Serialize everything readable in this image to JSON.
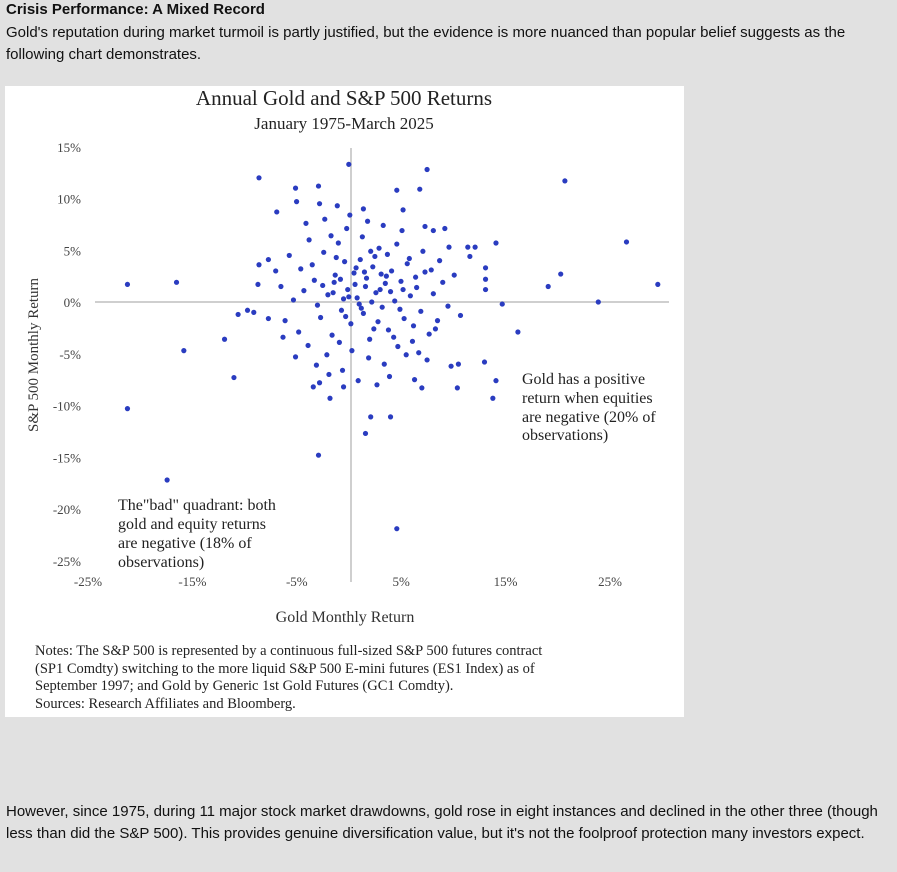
{
  "article": {
    "heading": "Crisis Performance: A Mixed Record",
    "intro": "Gold's reputation during market turmoil is partly justified, but the evidence is more nuanced than popular belief suggests as the following chart demonstrates.",
    "outro": "However, since 1975, during 11 major stock market drawdowns, gold rose in eight instances and declined in the other three (though less than did the S&P 500). This provides genuine diversification value, but it's not the foolproof protection many investors expect."
  },
  "chart_data": {
    "type": "scatter",
    "title": "Annual Gold and S&P 500 Returns",
    "subtitle": "January 1975-March 2025",
    "xlabel": "Gold Monthly Return",
    "ylabel": "S&P 500 Monthly Return",
    "xlim": [
      -25,
      30
    ],
    "ylim": [
      -25,
      15
    ],
    "x_ticks": [
      "-25%",
      "-15%",
      "-5%",
      "5%",
      "15%",
      "25%"
    ],
    "x_tick_values": [
      -25,
      -15,
      -5,
      5,
      15,
      25
    ],
    "y_ticks": [
      "15%",
      "10%",
      "5%",
      "0%",
      "-5%",
      "-10%",
      "-15%",
      "-20%",
      "-25%"
    ],
    "y_tick_values": [
      15,
      10,
      5,
      0,
      -5,
      -10,
      -15,
      -20,
      -25
    ],
    "grid": false,
    "reference_lines": {
      "x": 0,
      "y": 0
    },
    "point_color": "#2a3cc0",
    "annotations": [
      {
        "lines": [
          "Gold has a positive",
          "return when equities",
          "are negative (20% of",
          "observations)"
        ]
      },
      {
        "lines": [
          "The\"bad\" quadrant: both",
          "gold and equity returns",
          "are negative (18% of",
          "observations)"
        ]
      }
    ],
    "notes": [
      "Notes: The S&P 500 is represented by a continuous full-sized S&P 500 futures contract",
      "(SP1 Comdty) switching to the more liquid S&P 500 E-mini futures (ES1 Index) as of",
      "September 1997; and Gold by Generic 1st Gold Futures (GC1 Comdty).",
      "Sources: Research Affiliates and Bloomberg."
    ],
    "points": [
      [
        -21.7,
        1.7
      ],
      [
        -17.0,
        1.9
      ],
      [
        -9.1,
        12.0
      ],
      [
        -0.5,
        13.3
      ],
      [
        7.0,
        12.8
      ],
      [
        6.3,
        10.9
      ],
      [
        20.2,
        11.7
      ],
      [
        26.1,
        5.8
      ],
      [
        29.1,
        1.7
      ],
      [
        23.4,
        0.0
      ],
      [
        19.8,
        2.7
      ],
      [
        18.6,
        1.5
      ],
      [
        14.2,
        -0.2
      ],
      [
        15.7,
        -2.9
      ],
      [
        12.6,
        3.3
      ],
      [
        12.6,
        2.2
      ],
      [
        12.6,
        1.2
      ],
      [
        12.5,
        -5.8
      ],
      [
        13.6,
        -7.6
      ],
      [
        13.3,
        -9.3
      ],
      [
        -21.7,
        -10.3
      ],
      [
        -17.9,
        -17.2
      ],
      [
        -16.3,
        -4.7
      ],
      [
        -12.4,
        -3.6
      ],
      [
        -11.5,
        -7.3
      ],
      [
        -3.4,
        -14.8
      ],
      [
        4.1,
        -21.9
      ],
      [
        1.1,
        -12.7
      ],
      [
        1.6,
        -11.1
      ],
      [
        3.5,
        -11.1
      ],
      [
        9.9,
        -8.3
      ],
      [
        9.3,
        -6.2
      ],
      [
        10.0,
        -6.0
      ],
      [
        6.5,
        -8.3
      ],
      [
        -2.3,
        -9.3
      ],
      [
        -3.3,
        -7.8
      ],
      [
        -1.0,
        -8.2
      ],
      [
        -5.6,
        11.0
      ],
      [
        -3.4,
        11.2
      ],
      [
        -5.5,
        9.7
      ],
      [
        -7.4,
        8.7
      ],
      [
        -3.3,
        9.5
      ],
      [
        4.1,
        10.8
      ],
      [
        4.7,
        8.9
      ],
      [
        9.1,
        5.3
      ],
      [
        10.9,
        5.3
      ],
      [
        11.6,
        5.3
      ],
      [
        13.6,
        5.7
      ],
      [
        11.1,
        4.4
      ],
      [
        6.8,
        7.3
      ],
      [
        7.6,
        6.9
      ],
      [
        8.7,
        7.1
      ],
      [
        -8.2,
        4.1
      ],
      [
        -9.1,
        3.6
      ],
      [
        -10.2,
        -0.8
      ],
      [
        -11.1,
        -1.2
      ],
      [
        -9.6,
        -1.0
      ],
      [
        -9.2,
        1.7
      ],
      [
        -6.2,
        4.5
      ],
      [
        -5.1,
        3.2
      ],
      [
        -4.3,
        6.0
      ],
      [
        -3.8,
        2.1
      ],
      [
        -3.2,
        -1.5
      ],
      [
        -2.9,
        4.8
      ],
      [
        -2.5,
        0.7
      ],
      [
        -2.1,
        -3.2
      ],
      [
        -1.8,
        2.6
      ],
      [
        -1.5,
        5.7
      ],
      [
        -1.2,
        -0.8
      ],
      [
        -0.9,
        3.9
      ],
      [
        -0.6,
        1.2
      ],
      [
        -0.3,
        -2.1
      ],
      [
        0.0,
        2.8
      ],
      [
        0.3,
        0.4
      ],
      [
        0.6,
        4.1
      ],
      [
        0.9,
        -1.1
      ],
      [
        1.2,
        2.3
      ],
      [
        1.5,
        -3.6
      ],
      [
        1.8,
        3.4
      ],
      [
        2.1,
        0.9
      ],
      [
        2.4,
        5.2
      ],
      [
        2.7,
        -0.5
      ],
      [
        3.0,
        1.8
      ],
      [
        3.3,
        -2.7
      ],
      [
        3.6,
        3.0
      ],
      [
        3.9,
        0.1
      ],
      [
        4.2,
        -4.3
      ],
      [
        4.5,
        2.0
      ],
      [
        4.8,
        -1.6
      ],
      [
        5.1,
        3.7
      ],
      [
        5.4,
        0.6
      ],
      [
        5.7,
        -2.3
      ],
      [
        6.0,
        1.4
      ],
      [
        6.4,
        -0.9
      ],
      [
        6.8,
        2.9
      ],
      [
        7.2,
        -3.1
      ],
      [
        7.6,
        0.8
      ],
      [
        8.0,
        -1.8
      ],
      [
        8.5,
        1.9
      ],
      [
        9.0,
        -0.4
      ],
      [
        9.6,
        2.6
      ],
      [
        10.2,
        -1.3
      ],
      [
        -7.0,
        1.5
      ],
      [
        -6.6,
        -1.8
      ],
      [
        -5.8,
        0.2
      ],
      [
        -5.3,
        -2.9
      ],
      [
        -4.8,
        1.1
      ],
      [
        -4.4,
        -4.2
      ],
      [
        -4.0,
        3.6
      ],
      [
        -3.5,
        -0.3
      ],
      [
        -3.0,
        1.6
      ],
      [
        -2.6,
        -5.1
      ],
      [
        -2.2,
        6.4
      ],
      [
        -1.9,
        1.9
      ],
      [
        -1.4,
        -3.9
      ],
      [
        -1.0,
        0.3
      ],
      [
        -0.7,
        7.1
      ],
      [
        -0.2,
        -4.7
      ],
      [
        0.2,
        3.3
      ],
      [
        0.5,
        -0.2
      ],
      [
        0.8,
        6.3
      ],
      [
        1.1,
        1.5
      ],
      [
        1.4,
        -5.4
      ],
      [
        1.7,
        0.0
      ],
      [
        2.0,
        4.4
      ],
      [
        2.3,
        -1.9
      ],
      [
        2.6,
        2.7
      ],
      [
        2.9,
        -6.0
      ],
      [
        3.2,
        4.6
      ],
      [
        3.5,
        1.0
      ],
      [
        3.8,
        -3.4
      ],
      [
        4.1,
        5.6
      ],
      [
        4.4,
        -0.7
      ],
      [
        4.7,
        1.2
      ],
      [
        5.0,
        -5.1
      ],
      [
        5.3,
        4.2
      ],
      [
        5.6,
        -3.8
      ],
      [
        5.9,
        2.4
      ],
      [
        6.2,
        -4.9
      ],
      [
        6.6,
        4.9
      ],
      [
        7.0,
        -5.6
      ],
      [
        7.4,
        3.1
      ],
      [
        7.8,
        -2.6
      ],
      [
        8.2,
        4.0
      ],
      [
        -3.6,
        -6.1
      ],
      [
        -2.4,
        -7.0
      ],
      [
        -1.1,
        -6.6
      ],
      [
        0.4,
        -7.6
      ],
      [
        2.2,
        -8.0
      ],
      [
        3.4,
        -7.2
      ],
      [
        -5.6,
        -5.3
      ],
      [
        -6.8,
        -3.4
      ],
      [
        -8.2,
        -1.6
      ],
      [
        -7.5,
        3.0
      ],
      [
        -0.4,
        8.4
      ],
      [
        1.3,
        7.8
      ],
      [
        2.8,
        7.4
      ],
      [
        -2.8,
        8.0
      ],
      [
        -1.6,
        9.3
      ],
      [
        0.9,
        9.0
      ],
      [
        4.6,
        6.9
      ],
      [
        -4.6,
        7.6
      ],
      [
        5.8,
        -7.5
      ],
      [
        -3.9,
        -8.2
      ],
      [
        1.9,
        -2.6
      ],
      [
        -0.8,
        -1.4
      ],
      [
        0.1,
        1.7
      ],
      [
        1.0,
        2.9
      ],
      [
        -1.3,
        2.2
      ],
      [
        2.5,
        1.2
      ],
      [
        -0.5,
        0.5
      ],
      [
        0.7,
        -0.6
      ],
      [
        -2.0,
        0.9
      ],
      [
        3.1,
        2.5
      ],
      [
        1.6,
        4.9
      ],
      [
        -1.7,
        4.3
      ]
    ]
  }
}
